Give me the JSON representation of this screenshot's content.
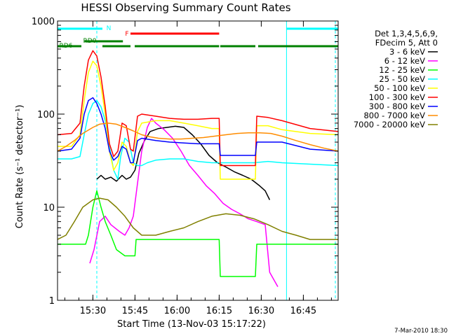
{
  "chart_data": {
    "type": "line",
    "title": "HESSI Observing Summary Count Rates",
    "xlabel": "Start Time (13-Nov-03 15:17:22)",
    "ylabel": "Count Rate (s⁻¹ detector⁻¹)",
    "y_scale": "log",
    "ylim": [
      1,
      1000
    ],
    "xlim_minutes": [
      0,
      100
    ],
    "x_ticks": [
      {
        "label": "15:30",
        "minute": 12.6
      },
      {
        "label": "15:45",
        "minute": 27.6
      },
      {
        "label": "16:00",
        "minute": 42.6
      },
      {
        "label": "16:15",
        "minute": 57.6
      },
      {
        "label": "16:30",
        "minute": 72.6
      },
      {
        "label": "16:45",
        "minute": 87.6
      }
    ],
    "y_ticks": [
      {
        "label": "1",
        "value": 1
      },
      {
        "label": "10",
        "value": 10
      },
      {
        "label": "100",
        "value": 100
      },
      {
        "label": "1000",
        "value": 1000
      }
    ],
    "timestamp": "7-Mar-2010 18:30",
    "legend": {
      "header": [
        "Det 1,3,4,5,6,9,",
        "FDecim 5, Att 0"
      ],
      "position": "right"
    },
    "series": [
      {
        "name": "3 - 6 keV",
        "color": "#000000",
        "x": [
          14,
          15.5,
          17,
          19,
          21,
          23,
          24.5,
          26,
          27.6,
          29,
          31,
          33,
          36,
          39,
          42,
          45,
          48,
          51,
          54,
          57,
          60,
          63,
          66,
          69,
          72,
          74,
          75.6
        ],
        "y": [
          20,
          22,
          20,
          21,
          19,
          22,
          20,
          21,
          25,
          38,
          52,
          65,
          70,
          72,
          74,
          72,
          60,
          48,
          36,
          30,
          27,
          24,
          22,
          20,
          17,
          15,
          12
        ]
      },
      {
        "name": "6 - 12 keV",
        "color": "#ff00ff",
        "x": [
          11.5,
          13,
          15,
          17,
          19,
          22,
          24,
          25.5,
          27,
          28.5,
          30,
          32,
          33.5,
          35,
          38,
          41,
          44,
          47,
          50,
          53,
          56,
          59,
          62,
          65,
          68,
          71,
          74,
          75.6,
          78.5
        ],
        "y": [
          2.5,
          3.5,
          7,
          8,
          6.5,
          5.5,
          5,
          6,
          8,
          18,
          40,
          72,
          90,
          80,
          68,
          55,
          40,
          28,
          22,
          17,
          14,
          11,
          9.5,
          8.5,
          7.5,
          7,
          6.5,
          2,
          1.4
        ]
      },
      {
        "name": "12 - 25 keV",
        "color": "#00ff00",
        "x": [
          0,
          5,
          10,
          11,
          12.6,
          14,
          15.5,
          17,
          19,
          21,
          24,
          27.6,
          28,
          35,
          45,
          55,
          57.6,
          58,
          62,
          69,
          70.5,
          71,
          80,
          90,
          100
        ],
        "y": [
          4,
          4,
          4,
          5,
          10,
          15,
          10,
          7,
          5,
          3.5,
          3,
          3,
          4.5,
          4.5,
          4.5,
          4.5,
          4.5,
          1.8,
          1.8,
          1.8,
          1.8,
          4,
          4,
          4,
          4
        ]
      },
      {
        "name": "25 - 50 keV",
        "color": "#00ffff",
        "x": [
          0,
          5,
          8,
          9.5,
          11,
          12.6,
          14,
          15.5,
          17,
          18.5,
          20,
          21.5,
          22.5,
          24,
          25.5,
          27,
          28.5,
          30,
          32,
          35,
          40,
          45,
          50,
          55,
          57.6,
          60,
          65,
          70,
          75,
          80,
          90,
          100
        ],
        "y": [
          33,
          33,
          35,
          60,
          100,
          130,
          140,
          120,
          85,
          45,
          25,
          20,
          35,
          55,
          50,
          30,
          28,
          28,
          30,
          32,
          33,
          33,
          31,
          30,
          30,
          30,
          30,
          30,
          31,
          30,
          29,
          28
        ]
      },
      {
        "name": "50 - 100 keV",
        "color": "#ffff00",
        "x": [
          0,
          5,
          8,
          9.5,
          11,
          12.6,
          14,
          15.5,
          17,
          18.5,
          20,
          21.5,
          23,
          24.5,
          26,
          27,
          28.5,
          30,
          35,
          40,
          45,
          50,
          55,
          57.6,
          58,
          62,
          69,
          70.5,
          71,
          75,
          80,
          90,
          100
        ],
        "y": [
          45,
          45,
          60,
          140,
          280,
          370,
          330,
          200,
          100,
          40,
          25,
          30,
          50,
          45,
          30,
          28,
          65,
          80,
          85,
          85,
          80,
          75,
          70,
          70,
          20,
          20,
          20,
          20,
          75,
          75,
          68,
          62,
          60
        ]
      },
      {
        "name": "100 - 300 keV",
        "color": "#ff0000",
        "x": [
          0,
          5,
          8,
          9.5,
          11,
          12.6,
          14,
          15.5,
          17,
          18.5,
          20,
          21.5,
          23,
          24.5,
          26,
          27,
          28.5,
          30,
          35,
          40,
          45,
          50,
          55,
          57.6,
          58,
          62,
          69,
          70.5,
          71,
          75,
          80,
          90,
          100
        ],
        "y": [
          60,
          62,
          80,
          200,
          380,
          480,
          420,
          250,
          120,
          48,
          35,
          40,
          80,
          75,
          42,
          40,
          95,
          100,
          95,
          90,
          88,
          88,
          90,
          90,
          28,
          28,
          28,
          28,
          95,
          92,
          85,
          70,
          65
        ]
      },
      {
        "name": "300 - 800 keV",
        "color": "#0000ff",
        "x": [
          0,
          5,
          8,
          9.5,
          11,
          12.6,
          14,
          15.5,
          17,
          18.5,
          20,
          21.5,
          23,
          24.5,
          26,
          27,
          28.5,
          30,
          35,
          40,
          45,
          50,
          55,
          57.6,
          58,
          62,
          69,
          70.5,
          71,
          75,
          80,
          90,
          100
        ],
        "y": [
          40,
          42,
          55,
          100,
          140,
          150,
          130,
          100,
          70,
          40,
          32,
          35,
          45,
          42,
          30,
          30,
          52,
          55,
          52,
          50,
          49,
          48,
          48,
          48,
          36,
          36,
          36,
          36,
          50,
          50,
          50,
          42,
          40
        ]
      },
      {
        "name": "800 - 7000 keV",
        "color": "#ff8c00",
        "x": [
          0,
          3,
          6,
          9,
          12.6,
          15,
          18,
          21,
          24,
          27,
          30,
          33,
          36,
          40,
          44,
          48,
          52,
          56,
          60,
          64,
          68,
          72,
          76,
          80,
          85,
          90,
          95,
          100
        ],
        "y": [
          40,
          45,
          52,
          62,
          72,
          78,
          80,
          78,
          72,
          66,
          60,
          57,
          55,
          54,
          54,
          55,
          56,
          58,
          60,
          62,
          63,
          63,
          62,
          58,
          52,
          47,
          43,
          40
        ]
      },
      {
        "name": "7000 - 20000 keV",
        "color": "#808000",
        "x": [
          0,
          3,
          6,
          9,
          12.6,
          15,
          18,
          21,
          24,
          27,
          30,
          35,
          40,
          45,
          50,
          55,
          60,
          65,
          70,
          75,
          80,
          85,
          90,
          95,
          100
        ],
        "y": [
          4.5,
          5,
          7,
          10,
          12,
          12.5,
          12,
          10,
          8,
          6,
          5,
          5,
          5.5,
          6,
          7,
          8,
          8.5,
          8.2,
          7.5,
          6.5,
          5.5,
          5,
          4.5,
          4.5,
          4.5
        ]
      }
    ],
    "states": [
      {
        "label": "N",
        "color": "#00ffff",
        "segments": [
          [
            0,
            16
          ],
          [
            81.6,
            100
          ]
        ]
      },
      {
        "label": "F",
        "color": "#ff0000",
        "segments": [
          [
            26,
            57.6
          ]
        ]
      },
      {
        "label": "RD0",
        "color": "#008000",
        "segments": [
          [
            9.6,
            23.3
          ]
        ]
      },
      {
        "label": "RD6",
        "color": "#008000",
        "segments": [
          [
            0,
            8.5
          ],
          [
            16,
            26
          ],
          [
            27.5,
            57.6
          ],
          [
            58,
            70.5
          ],
          [
            71.5,
            100
          ]
        ]
      }
    ],
    "vertical_markers": [
      {
        "minute": 14,
        "color": "#00ffff",
        "style": "dashed"
      },
      {
        "minute": 81.6,
        "color": "#00ffff",
        "style": "solid"
      },
      {
        "minute": 99,
        "color": "#00ffff",
        "style": "dashed"
      }
    ]
  }
}
